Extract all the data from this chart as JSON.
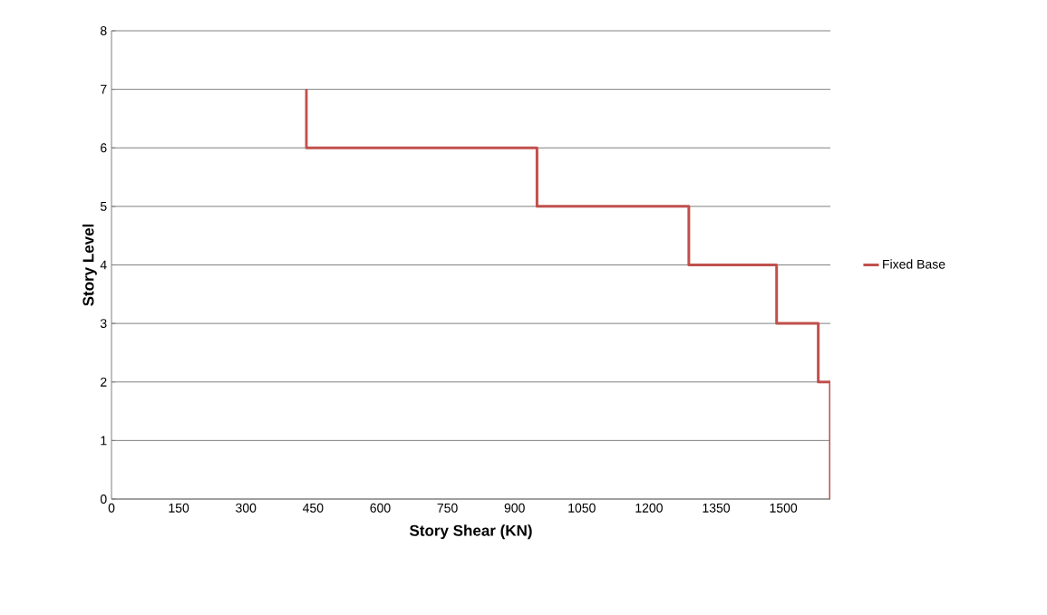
{
  "chart_data": {
    "type": "line",
    "xlabel": "Story Shear (KN)",
    "ylabel": "Story Level",
    "series": [
      {
        "name": "Fixed Base",
        "color": "#c0504d",
        "x": [
          435,
          435,
          950,
          950,
          1289,
          1289,
          1485,
          1485,
          1578,
          1578,
          1605,
          1605
        ],
        "values": [
          7,
          6,
          6,
          5,
          5,
          4,
          4,
          3,
          3,
          2,
          2,
          0
        ]
      }
    ],
    "xlim": [
      0,
      1605
    ],
    "xticks": [
      0,
      150,
      300,
      450,
      600,
      750,
      900,
      1050,
      1200,
      1350,
      1500
    ],
    "ylim": [
      0,
      8
    ],
    "yticks": [
      0,
      1,
      2,
      3,
      4,
      5,
      6,
      7,
      8
    ],
    "grid": "y",
    "legend": "right",
    "marker": "none",
    "line_style": "solid"
  }
}
